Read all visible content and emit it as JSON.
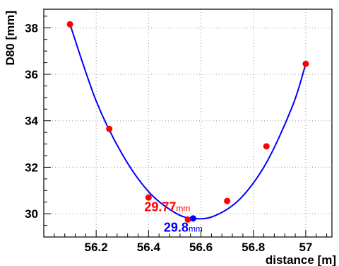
{
  "chart_data": {
    "type": "scatter",
    "xlabel": "distance [m]",
    "ylabel": "D80 [mm]",
    "xlim": [
      56.0,
      57.1
    ],
    "ylim": [
      29.0,
      38.8
    ],
    "x_ticks": [
      56.2,
      56.4,
      56.6,
      56.8,
      57.0
    ],
    "x_tick_labels": [
      "56.2",
      "56.4",
      "56.6",
      "56.8",
      "57"
    ],
    "y_ticks": [
      30,
      32,
      34,
      36,
      38
    ],
    "y_tick_labels": [
      "30",
      "32",
      "34",
      "36",
      "38"
    ],
    "grid": true,
    "series": [
      {
        "marker_color": "#ff0000",
        "x": [
          56.1,
          56.25,
          56.4,
          56.55,
          56.7,
          56.85,
          57.0
        ],
        "y": [
          38.15,
          33.65,
          30.7,
          29.75,
          30.55,
          32.9,
          36.45
        ]
      }
    ],
    "fit_curve": {
      "color": "#0000ff",
      "x": [
        56.1,
        56.2,
        56.3,
        56.4,
        56.5,
        56.57,
        56.65,
        56.75,
        56.85,
        56.95,
        57.0
      ],
      "y": [
        38.15,
        34.85,
        32.55,
        30.95,
        30.05,
        29.8,
        29.9,
        30.65,
        32.2,
        34.65,
        36.45
      ]
    },
    "fit_minimum": {
      "x": 56.57,
      "y": 29.8,
      "color": "#0000ff"
    },
    "annotations": [
      {
        "value": "29.77",
        "unit": "mm",
        "color": "#ff0000"
      },
      {
        "value": "29.8",
        "unit": "mm",
        "color": "#0000ff"
      }
    ]
  }
}
